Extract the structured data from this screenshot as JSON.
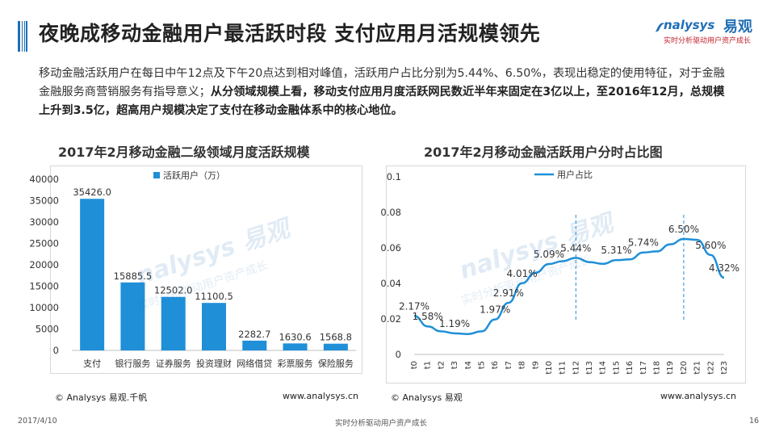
{
  "header": {
    "title": "夜晚成移动金融用户最活跃时段 支付应用月活规模领先",
    "logo_en": "nalysys",
    "logo_cn": "易观",
    "logo_tag": "实时分析驱动用户资产成长"
  },
  "summary": {
    "part1": "移动金融活跃用户在每日中午12点及下午20点达到相对峰值，活跃用户占比分别为5.44%、6.50%，表现出稳定的使用特征，对于金融金融服务商营销服务有指导意义；",
    "part2": "从分领域规模上看，移动支付应用月度活跃网民数近半年来固定在3亿以上，至2016年12月，总规模上升到3.5亿，超高用户规模决定了支付在移动金融体系中的核心地位。"
  },
  "left_chart": {
    "title": "2017年2月移动金融二级领域月度活跃规模",
    "source": "© Analysys 易观.千帆",
    "website": "www.analysys.cn"
  },
  "right_chart": {
    "title": "2017年2月移动金融活跃用户分时占比图",
    "source": "© Analysys 易观",
    "website": "www.analysys.cn"
  },
  "footer": {
    "date": "2017/4/10",
    "slogan": "实时分析驱动用户资产成长",
    "page": "16"
  },
  "watermark": {
    "brand": "nalysys 易观",
    "tagline": "实时分析驱动用户资产成长"
  },
  "colors": {
    "accent": "#1f6fb5",
    "bar": "#1f8fd8",
    "line": "#1f8fd8",
    "tag": "#c2202c"
  },
  "chart_data": [
    {
      "type": "bar",
      "title": "2017年2月移动金融二级领域月度活跃规模",
      "categories": [
        "支付",
        "银行服务",
        "证券服务",
        "投资理财",
        "网络借贷",
        "彩票服务",
        "保险服务"
      ],
      "series": [
        {
          "name": "活跃用户（万）",
          "values": [
            35426.0,
            15885.5,
            12502.0,
            11100.5,
            2282.7,
            1630.6,
            1568.8
          ]
        }
      ],
      "value_labels": [
        "35426.0",
        "15885.5",
        "12502.0",
        "11100.5",
        "2282.7",
        "1630.6",
        "1568.8"
      ],
      "ylim": [
        0,
        40000
      ],
      "yticks": [
        "0",
        "5000",
        "10000",
        "15000",
        "20000",
        "25000",
        "30000",
        "35000",
        "40000"
      ],
      "legend": "top",
      "grid": false
    },
    {
      "type": "line",
      "title": "2017年2月移动金融活跃用户分时占比图",
      "x": [
        "t0",
        "t1",
        "t2",
        "t3",
        "t4",
        "t5",
        "t6",
        "t7",
        "t8",
        "t9",
        "t10",
        "t11",
        "t12",
        "t13",
        "t14",
        "t15",
        "t16",
        "t17",
        "t18",
        "t19",
        "t20",
        "t21",
        "t22",
        "t23"
      ],
      "series": [
        {
          "name": "用户占比",
          "values": [
            0.0217,
            0.0158,
            0.013,
            0.0119,
            0.0115,
            0.013,
            0.0197,
            0.0291,
            0.0401,
            0.046,
            0.0509,
            0.0525,
            0.0544,
            0.052,
            0.051,
            0.0531,
            0.0535,
            0.0574,
            0.058,
            0.062,
            0.065,
            0.0645,
            0.056,
            0.0432
          ]
        }
      ],
      "annotations": [
        {
          "index": 0,
          "text": "2.17%"
        },
        {
          "index": 1,
          "text": "1.58%"
        },
        {
          "index": 3,
          "text": "1.19%"
        },
        {
          "index": 6,
          "text": "1.97%"
        },
        {
          "index": 7,
          "text": "2.91%"
        },
        {
          "index": 8,
          "text": "4.01%"
        },
        {
          "index": 10,
          "text": "5.09%"
        },
        {
          "index": 12,
          "text": "5.44%"
        },
        {
          "index": 15,
          "text": "5.31%"
        },
        {
          "index": 17,
          "text": "5.74%"
        },
        {
          "index": 20,
          "text": "6.50%"
        },
        {
          "index": 22,
          "text": "5.60%"
        },
        {
          "index": 23,
          "text": "4.32%"
        }
      ],
      "markers": [
        12,
        20
      ],
      "ylim": [
        0,
        0.1
      ],
      "yticks": [
        "0",
        "0.02",
        "0.04",
        "0.06",
        "0.08",
        "0.1"
      ],
      "legend": "top",
      "grid": false
    }
  ]
}
